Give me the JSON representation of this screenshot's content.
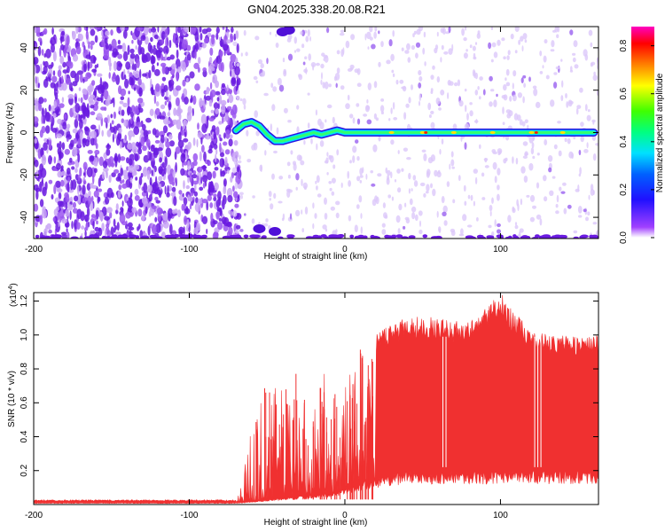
{
  "title": "GN04.2025.338.20.08.R21",
  "chart_data": [
    {
      "type": "heatmap",
      "xlabel": "Height of straight line (km)",
      "ylabel": "Frequency (Hz)",
      "xlim": [
        -200,
        163
      ],
      "ylim": [
        -50,
        50
      ],
      "xticks": [
        -200,
        -100,
        0,
        100
      ],
      "yticks": [
        -40,
        -20,
        0,
        20,
        40
      ],
      "colorbar": {
        "label": "Normalized spectral amplitude",
        "range": [
          0,
          0.88
        ],
        "ticks": [
          0.0,
          0.2,
          0.4,
          0.6,
          0.8
        ],
        "colormap": [
          "#ffffff",
          "#8000ff",
          "#0000ff",
          "#00ffff",
          "#00ff00",
          "#ffff00",
          "#ff8000",
          "#ff0000",
          "#ff00ff"
        ]
      },
      "ridge": {
        "x": [
          -70,
          -65,
          -60,
          -55,
          -50,
          -45,
          -40,
          -35,
          -30,
          -25,
          -20,
          -15,
          -10,
          -5,
          0,
          10,
          20,
          50,
          100,
          160
        ],
        "y": [
          1,
          4,
          5,
          3,
          -1,
          -4,
          -4,
          -3,
          -2,
          -1,
          0,
          -1,
          0,
          1,
          0,
          0,
          0,
          0,
          0,
          0
        ]
      },
      "noise_onset_x": -72,
      "grid": false
    },
    {
      "type": "area",
      "xlabel": "Height of straight line (km)",
      "ylabel": "SNR (10 * v/v)",
      "y_multiplier": "(x10",
      "y_exponent": "4",
      "xlim": [
        -200,
        163
      ],
      "ylim": [
        0,
        1.25
      ],
      "xticks": [
        -200,
        -100,
        0,
        100
      ],
      "yticks": [
        0.2,
        0.4,
        0.6,
        0.8,
        1.0,
        1.2
      ],
      "color": "#f03030",
      "envelope": {
        "x": [
          -200,
          -70,
          -60,
          -50,
          -40,
          -30,
          -20,
          -10,
          -5,
          0,
          10,
          20,
          30,
          40,
          60,
          80,
          100,
          120,
          140,
          163
        ],
        "lower": [
          0.01,
          0.01,
          0.02,
          0.03,
          0.04,
          0.05,
          0.06,
          0.07,
          0.08,
          0.1,
          0.13,
          0.16,
          0.18,
          0.2,
          0.2,
          0.2,
          0.2,
          0.2,
          0.2,
          0.2
        ],
        "upper": [
          0.02,
          0.02,
          0.45,
          0.75,
          0.7,
          0.82,
          0.55,
          0.9,
          0.6,
          0.78,
          0.92,
          1.0,
          1.08,
          1.12,
          1.1,
          1.08,
          1.25,
          1.02,
          1.0,
          1.0
        ]
      },
      "grid": false
    }
  ]
}
